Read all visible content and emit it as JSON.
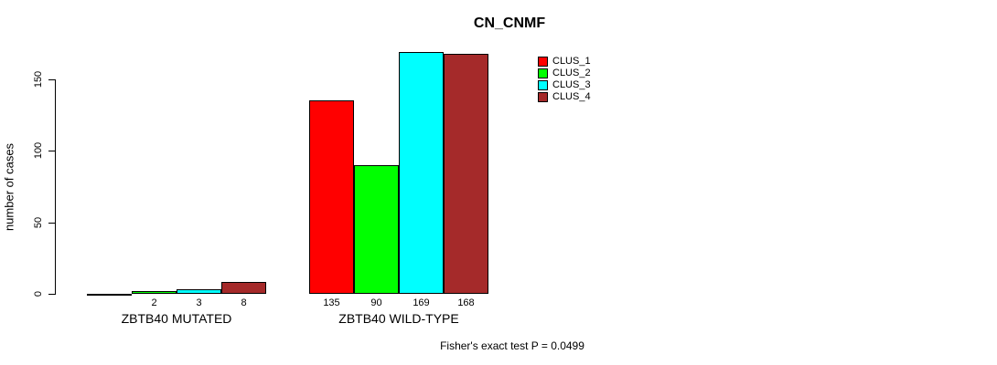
{
  "title": "CN_CNMF",
  "ylabel": "number of cases",
  "footer": "Fisher's exact test P = 0.0499",
  "chart_data": {
    "type": "bar",
    "title": "CN_CNMF",
    "xlabel": "",
    "ylabel": "number of cases",
    "categories": [
      "ZBTB40 MUTATED",
      "ZBTB40 WILD-TYPE"
    ],
    "series": [
      {
        "name": "CLUS_1",
        "color": "#FF0000",
        "values": [
          0,
          135
        ]
      },
      {
        "name": "CLUS_2",
        "color": "#00FF00",
        "values": [
          2,
          90
        ]
      },
      {
        "name": "CLUS_3",
        "color": "#00FFFF",
        "values": [
          3,
          169
        ]
      },
      {
        "name": "CLUS_4",
        "color": "#A52A2A",
        "values": [
          8,
          168
        ]
      }
    ],
    "bar_value_labels": [
      [
        "",
        "2",
        "3",
        "8"
      ],
      [
        "135",
        "90",
        "169",
        "168"
      ]
    ],
    "yticks": [
      0,
      50,
      100,
      150
    ],
    "ylim": [
      0,
      169
    ],
    "grid": false,
    "legend_position": "top-right",
    "annotation": "Fisher's exact test P = 0.0499"
  }
}
